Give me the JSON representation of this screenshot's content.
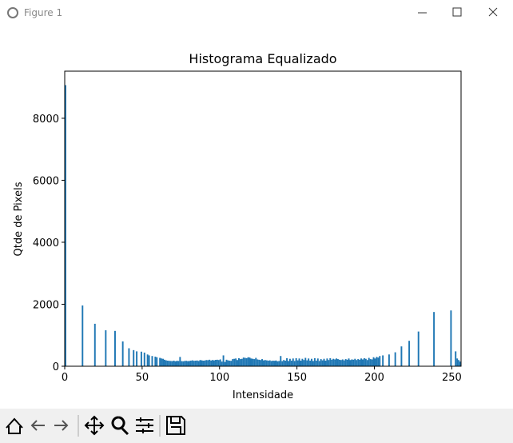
{
  "window": {
    "title": "Figure 1"
  },
  "chart_data": {
    "type": "histogram",
    "title": "Histograma Equalizado",
    "xlabel": "Intensidade",
    "ylabel": "Qtde de Pixels",
    "color": "#1f77b4",
    "xlim": [
      0,
      256
    ],
    "ylim": [
      0,
      9520
    ],
    "xticks": [
      0,
      50,
      100,
      150,
      200,
      250
    ],
    "yticks": [
      0,
      2000,
      4000,
      6000,
      8000
    ],
    "grid": false,
    "bins": [
      0,
      1,
      11,
      12,
      19,
      20,
      26,
      27,
      32,
      33,
      37,
      38,
      41,
      42,
      44,
      45,
      46,
      47,
      49,
      50,
      51,
      52,
      53,
      54,
      55,
      56,
      57,
      58,
      59,
      60,
      61,
      62,
      63,
      64,
      65,
      66,
      67,
      68,
      69,
      70,
      71,
      72,
      73,
      74,
      75,
      76,
      77,
      78,
      79,
      80,
      81,
      82,
      83,
      84,
      85,
      86,
      87,
      88,
      89,
      90,
      91,
      92,
      93,
      94,
      95,
      96,
      97,
      98,
      99,
      100,
      101,
      102,
      103,
      104,
      105,
      106,
      107,
      108,
      109,
      110,
      111,
      112,
      113,
      114,
      115,
      116,
      117,
      118,
      119,
      120,
      121,
      122,
      123,
      124,
      125,
      126,
      127,
      128,
      129,
      130,
      131,
      132,
      133,
      134,
      135,
      136,
      137,
      138,
      139,
      140,
      141,
      142,
      143,
      144,
      145,
      146,
      147,
      148,
      149,
      150,
      151,
      152,
      153,
      154,
      155,
      156,
      157,
      158,
      159,
      160,
      161,
      162,
      163,
      164,
      165,
      166,
      167,
      168,
      169,
      170,
      171,
      172,
      173,
      174,
      175,
      176,
      177,
      178,
      179,
      180,
      181,
      182,
      183,
      184,
      185,
      186,
      187,
      188,
      189,
      190,
      191,
      192,
      193,
      194,
      195,
      196,
      197,
      198,
      199,
      200,
      201,
      202,
      203,
      204,
      205,
      206,
      209,
      210,
      213,
      214,
      217,
      218,
      222,
      223,
      228,
      229,
      238,
      239,
      249,
      250,
      252,
      253,
      254,
      255,
      256
    ],
    "counts": [
      9070,
      0,
      1960,
      0,
      1370,
      0,
      1160,
      0,
      1140,
      0,
      800,
      0,
      580,
      0,
      520,
      0,
      480,
      0,
      470,
      0,
      440,
      0,
      380,
      350,
      0,
      330,
      0,
      310,
      290,
      0,
      270,
      250,
      240,
      210,
      190,
      180,
      175,
      170,
      165,
      180,
      160,
      175,
      170,
      300,
      165,
      160,
      170,
      175,
      165,
      170,
      180,
      190,
      175,
      180,
      185,
      170,
      200,
      190,
      180,
      185,
      200,
      195,
      210,
      185,
      200,
      190,
      205,
      210,
      200,
      220,
      150,
      350,
      140,
      210,
      190,
      180,
      175,
      230,
      240,
      250,
      200,
      260,
      230,
      240,
      280,
      270,
      260,
      290,
      280,
      250,
      240,
      230,
      270,
      220,
      210,
      200,
      230,
      190,
      200,
      190,
      180,
      190,
      170,
      180,
      175,
      185,
      160,
      170,
      330,
      165,
      200,
      180,
      260,
      170,
      240,
      180,
      250,
      170,
      260,
      190,
      250,
      180,
      240,
      200,
      270,
      190,
      250,
      180,
      240,
      170,
      260,
      180,
      250,
      170,
      230,
      190,
      240,
      180,
      250,
      200,
      260,
      210,
      240,
      220,
      250,
      230,
      210,
      200,
      220,
      190,
      230,
      210,
      250,
      200,
      220,
      210,
      240,
      200,
      230,
      210,
      250,
      220,
      260,
      240,
      200,
      270,
      230,
      220,
      290,
      250,
      300,
      280,
      330,
      0,
      350,
      0,
      380,
      0,
      450,
      0,
      640,
      0,
      820,
      0,
      1120,
      0,
      1750,
      0,
      1800,
      0,
      480,
      250,
      200,
      150
    ]
  }
}
